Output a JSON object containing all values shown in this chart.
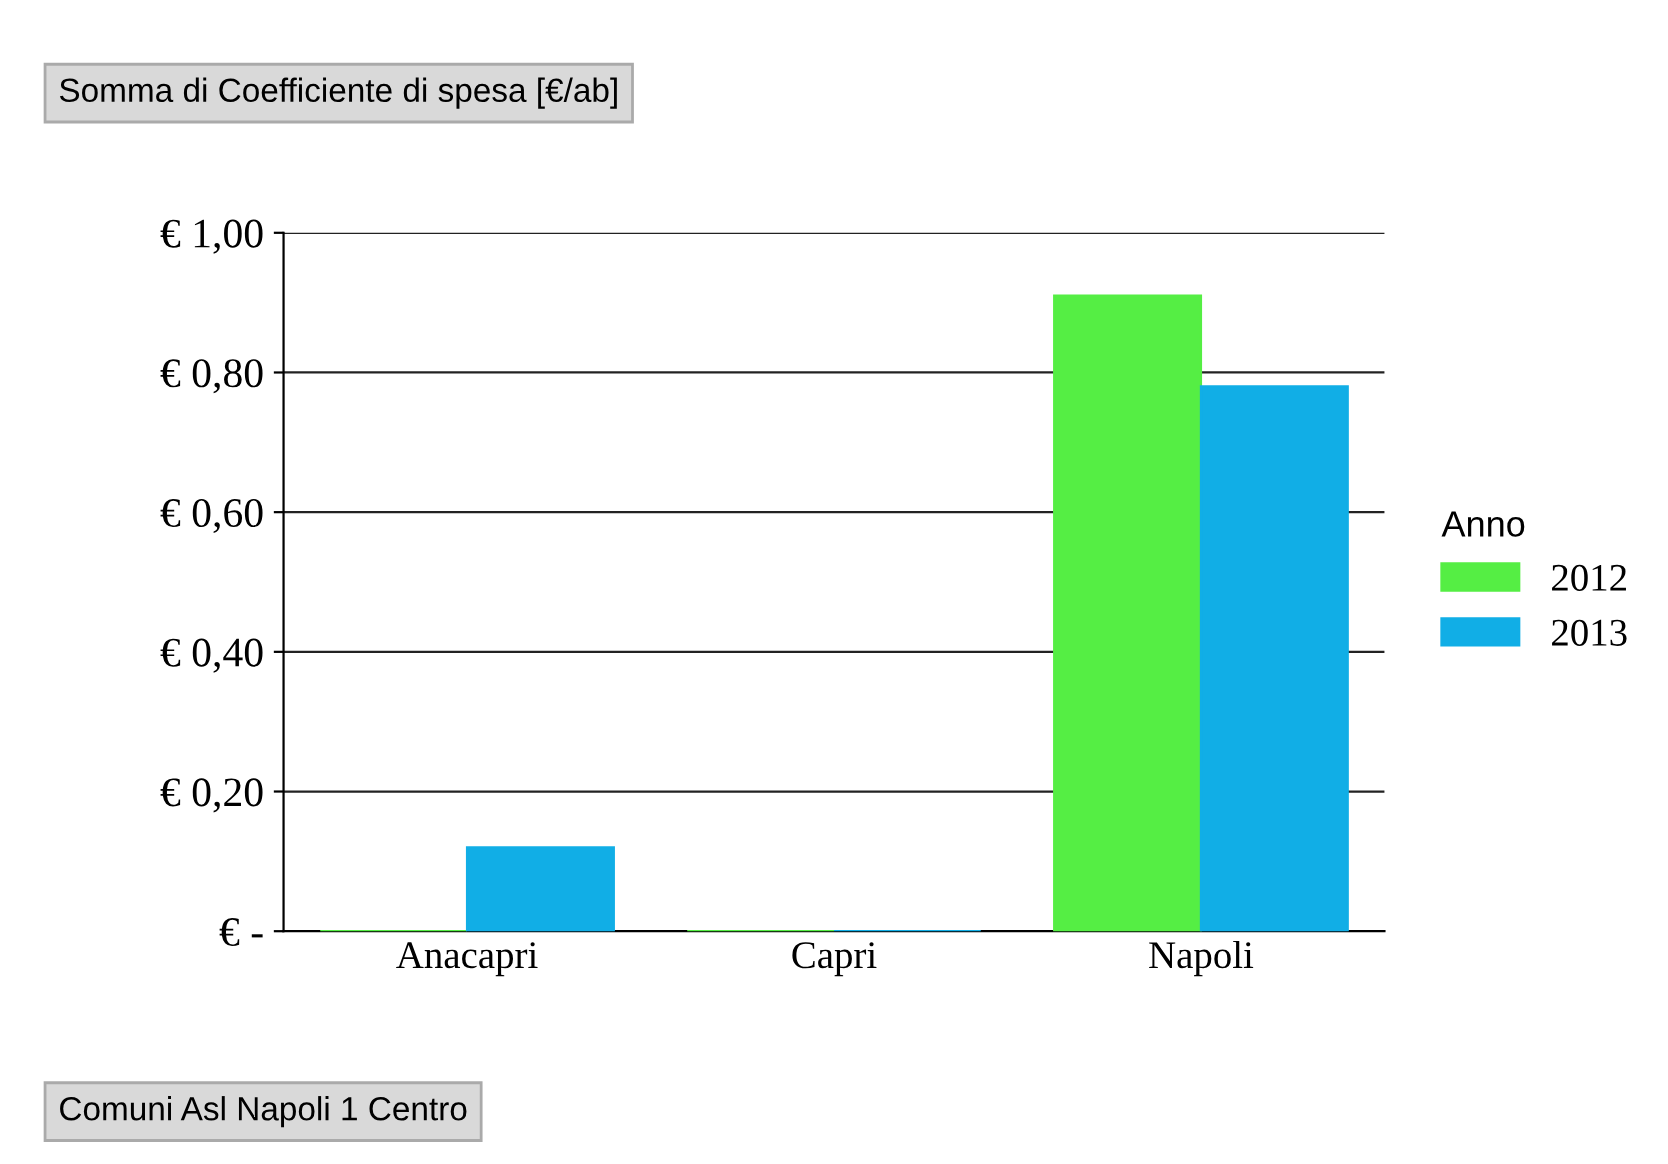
{
  "chart_data": {
    "type": "bar",
    "title": "Somma di Coefficiente di spesa [€/ab]",
    "xlabel": "Comuni Asl Napoli 1 Centro",
    "legend_title": "Anno",
    "categories": [
      "Anacapri",
      "Capri",
      "Napoli"
    ],
    "series": [
      {
        "name": "2012",
        "color": "#55ee44",
        "values": [
          0,
          0,
          0.91
        ]
      },
      {
        "name": "2013",
        "color": "#11aee6",
        "values": [
          0.12,
          0,
          0.78
        ]
      }
    ],
    "ylim": [
      0,
      1.0
    ],
    "yticks": [
      {
        "value": 0,
        "label": "€ -"
      },
      {
        "value": 0.2,
        "label": "€ 0,20"
      },
      {
        "value": 0.4,
        "label": "€ 0,40"
      },
      {
        "value": 0.6,
        "label": "€ 0,60"
      },
      {
        "value": 0.8,
        "label": "€ 0,80"
      },
      {
        "value": 1.0,
        "label": "€ 1,00"
      }
    ],
    "grid": "y",
    "legend": "right"
  }
}
